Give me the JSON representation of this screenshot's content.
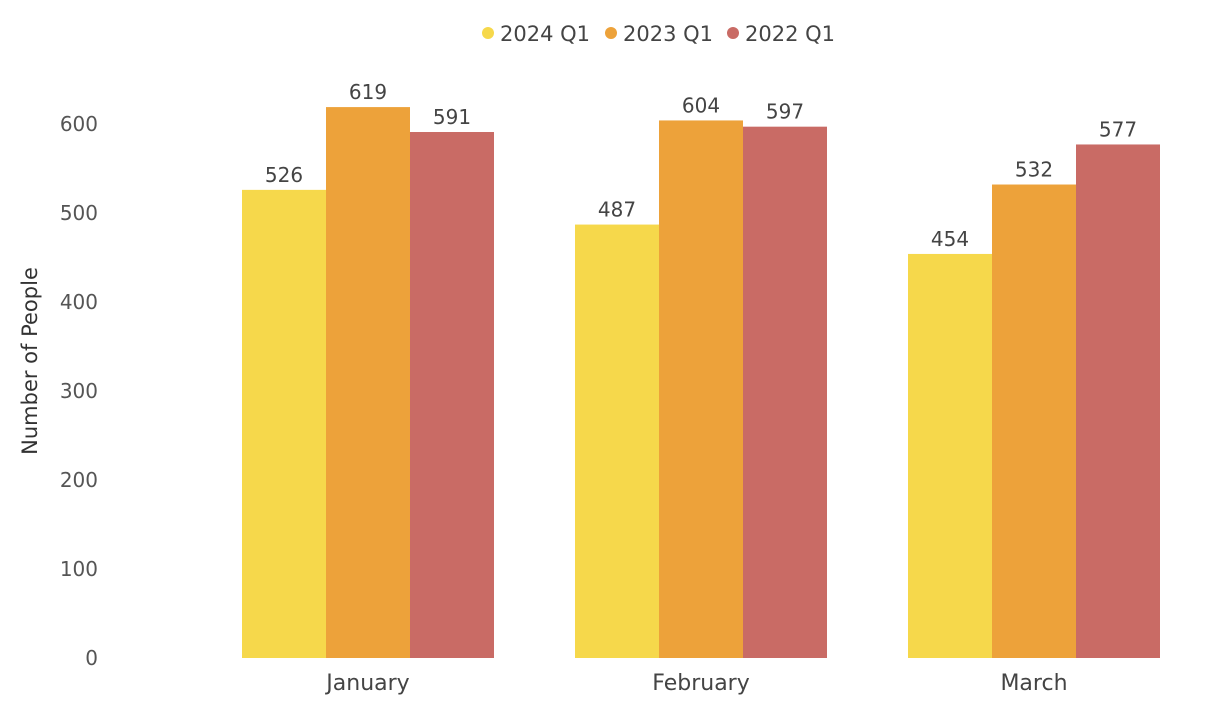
{
  "chart_data": {
    "type": "bar",
    "title": "",
    "xlabel": "",
    "ylabel": "Number of People",
    "categories": [
      "January",
      "February",
      "March"
    ],
    "series": [
      {
        "name": "2024 Q1",
        "color": "#F6D84B",
        "values": [
          526,
          487,
          454
        ]
      },
      {
        "name": "2023 Q1",
        "color": "#EDA23A",
        "values": [
          619,
          604,
          532
        ]
      },
      {
        "name": "2022 Q1",
        "color": "#C96B65",
        "values": [
          591,
          597,
          577
        ]
      }
    ],
    "ylim": [
      0,
      600
    ],
    "yticks": [
      0,
      100,
      200,
      300,
      400,
      500,
      600
    ],
    "grid": false,
    "legend_position": "top-center"
  }
}
